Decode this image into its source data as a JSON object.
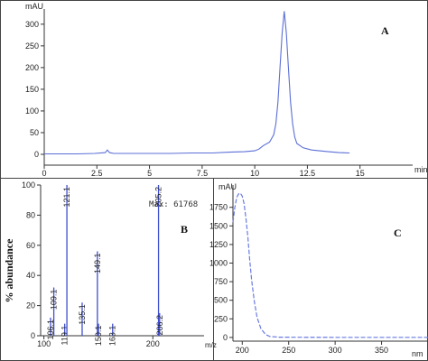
{
  "chart_data": [
    {
      "panel": "A",
      "type": "line",
      "ylabel": "mAU",
      "xlabel": "min",
      "xlim": [
        0,
        17.5
      ],
      "ylim": [
        -25,
        335
      ],
      "x_ticks": [
        0,
        2.5,
        5,
        7.5,
        10,
        12.5,
        15
      ],
      "x_tick_labels": [
        "0",
        "2.5",
        "5",
        "7.5",
        "10",
        "12.5",
        "15"
      ],
      "y_ticks": [
        0,
        50,
        100,
        150,
        200,
        250,
        300
      ],
      "y_tick_labels": [
        "0",
        "50",
        "100",
        "150",
        "200",
        "250",
        "300"
      ],
      "color": "#5b6fd6",
      "x": [
        0,
        0.8,
        1.6,
        2.4,
        2.9,
        3.0,
        3.1,
        3.3,
        4.0,
        5.0,
        6.0,
        7.0,
        8.0,
        8.8,
        9.5,
        10.0,
        10.2,
        10.4,
        10.7,
        10.9,
        11.0,
        11.1,
        11.2,
        11.3,
        11.4,
        11.5,
        11.6,
        11.7,
        11.8,
        11.9,
        12.0,
        12.3,
        12.7,
        13.5,
        14.0,
        14.5
      ],
      "y": [
        1,
        1,
        1,
        2,
        4,
        10,
        4,
        2,
        2,
        2,
        2,
        3,
        3,
        5,
        6,
        8,
        12,
        20,
        28,
        45,
        70,
        120,
        200,
        280,
        330,
        280,
        200,
        120,
        70,
        40,
        25,
        15,
        10,
        6,
        4,
        3
      ]
    },
    {
      "panel": "B",
      "type": "bar",
      "ylabel": "% abundance",
      "xlabel": "m/z",
      "xlim": [
        97,
        247
      ],
      "ylim": [
        0,
        100
      ],
      "x_ticks": [
        100,
        200
      ],
      "x_tick_labels": [
        "100",
        "200"
      ],
      "y_ticks": [
        0,
        20,
        40,
        60,
        80,
        100
      ],
      "y_tick_labels": [
        "0",
        "20",
        "40",
        "60",
        "80",
        "100"
      ],
      "annotation": "Max: 61768",
      "color": "#3f4fd0",
      "peaks": [
        {
          "mz": 106.1,
          "abundance": 12,
          "label": "106.1"
        },
        {
          "mz": 109.1,
          "abundance": 32,
          "label": "109.1"
        },
        {
          "mz": 119.1,
          "abundance": 8,
          "label": "119.1"
        },
        {
          "mz": 121.1,
          "abundance": 100,
          "label": "121.1"
        },
        {
          "mz": 135.1,
          "abundance": 22,
          "label": "135.1"
        },
        {
          "mz": 149.1,
          "abundance": 56,
          "label": "149.1"
        },
        {
          "mz": 150.1,
          "abundance": 8,
          "label": "150.1"
        },
        {
          "mz": 163.1,
          "abundance": 8,
          "label": "163.1"
        },
        {
          "mz": 205.2,
          "abundance": 100,
          "label": "205.2"
        },
        {
          "mz": 206.2,
          "abundance": 15,
          "label": "206.2"
        }
      ]
    },
    {
      "panel": "C",
      "type": "line",
      "ylabel": "mAU",
      "xlabel": "nm",
      "xlim": [
        190,
        400
      ],
      "ylim": [
        -50,
        2050
      ],
      "x_ticks": [
        200,
        250,
        300,
        350
      ],
      "x_tick_labels": [
        "200",
        "250",
        "300",
        "350"
      ],
      "y_ticks": [
        0,
        250,
        500,
        750,
        1000,
        1250,
        1500,
        1750
      ],
      "y_tick_labels": [
        "0",
        "250",
        "500",
        "750",
        "1000",
        "1250",
        "1500",
        "1750"
      ],
      "color": "#6a7be0",
      "x": [
        190,
        192,
        194,
        196,
        198,
        200,
        202,
        204,
        206,
        208,
        210,
        213,
        216,
        220,
        225,
        230,
        240,
        260,
        300,
        350,
        400
      ],
      "y": [
        1550,
        1750,
        1880,
        1930,
        1940,
        1900,
        1800,
        1600,
        1350,
        1050,
        780,
        480,
        270,
        120,
        40,
        12,
        4,
        2,
        1,
        1,
        1
      ]
    }
  ],
  "panel_labels": {
    "a": "A",
    "b": "B",
    "c": "C"
  }
}
